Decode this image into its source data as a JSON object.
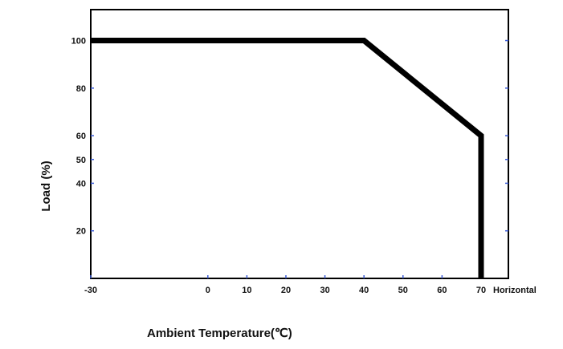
{
  "chart_data": {
    "type": "line",
    "xlabel": "Ambient Temperature(℃)",
    "ylabel": "Load (%)",
    "x_suffix_label": "Horizontal",
    "xlim": [
      -30,
      77
    ],
    "ylim": [
      0,
      113
    ],
    "x_ticks": [
      -30,
      0,
      10,
      20,
      30,
      40,
      50,
      60,
      70
    ],
    "y_ticks": [
      20,
      40,
      50,
      60,
      80,
      100
    ],
    "grid": false,
    "series": [
      {
        "points": [
          [
            -30,
            100
          ],
          [
            40,
            100
          ],
          [
            70,
            60
          ],
          [
            70,
            0
          ]
        ]
      }
    ]
  },
  "colors": {
    "line": "#000000",
    "axis": "#000000",
    "tick_marks": "#3b5bd6"
  }
}
